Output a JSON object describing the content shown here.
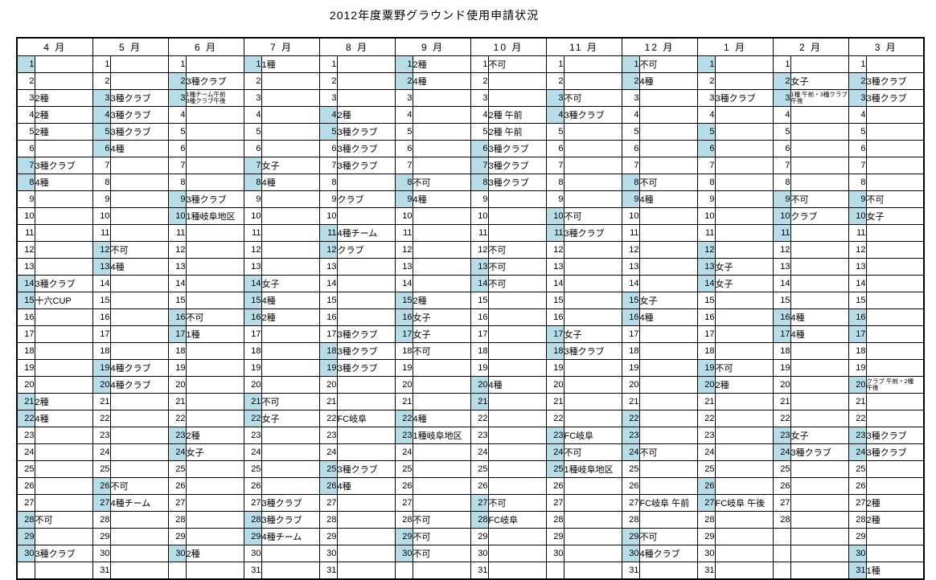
{
  "title": "2012年度粟野グラウンド使用申請状況",
  "colors": {
    "weekend_highlight": "#B7DEE8",
    "grid_line": "#000000",
    "background": "#FFFFFF"
  },
  "calendar": {
    "max_rows": 31,
    "months": [
      {
        "label": "4 月",
        "days": 30,
        "highlighted_days": [
          1,
          7,
          8,
          14,
          15,
          21,
          22,
          28,
          29,
          30
        ],
        "entries": {
          "3": "2種",
          "4": "2種",
          "5": "2種",
          "7": "3種クラブ",
          "8": "4種",
          "14": "3種クラブ",
          "15": "十六CUP",
          "21": "2種",
          "22": "4種",
          "28": "不可",
          "30": "3種クラブ"
        },
        "small_entries": {}
      },
      {
        "label": "5 月",
        "days": 31,
        "highlighted_days": [
          3,
          4,
          5,
          6,
          12,
          13,
          19,
          20,
          26,
          27
        ],
        "entries": {
          "3": "3種クラブ",
          "4": "3種クラブ",
          "5": "3種クラブ",
          "6": "4種",
          "12": "不可",
          "13": "4種",
          "19": "4種クラブ",
          "20": "4種クラブ",
          "26": "不可",
          "27": "4種チーム"
        },
        "small_entries": {}
      },
      {
        "label": "6 月",
        "days": 30,
        "highlighted_days": [
          2,
          3,
          9,
          10,
          16,
          17,
          23,
          24,
          30
        ],
        "entries": {
          "2": "3種クラブ",
          "9": "3種クラブ",
          "10": "1種岐阜地区",
          "16": "不可",
          "17": "1種",
          "23": "2種",
          "24": "女子",
          "30": "2種"
        },
        "small_entries": {
          "3": [
            "1種チーム午前",
            "3種クラブ午後"
          ]
        }
      },
      {
        "label": "7 月",
        "days": 31,
        "highlighted_days": [
          1,
          7,
          8,
          14,
          15,
          16,
          21,
          22,
          28,
          29
        ],
        "entries": {
          "1": "1種",
          "7": "女子",
          "8": "4種",
          "14": "女子",
          "15": "4種",
          "16": "2種",
          "21": "不可",
          "22": "女子",
          "27": "3種クラブ",
          "28": "3種クラブ",
          "29": "4種チーム"
        },
        "small_entries": {}
      },
      {
        "label": "8 月",
        "days": 31,
        "highlighted_days": [
          4,
          5,
          11,
          12,
          18,
          19,
          25,
          26
        ],
        "entries": {
          "4": "2種",
          "5": "3種クラブ",
          "6": "3種クラブ",
          "7": "3種クラブ",
          "9": "クラブ",
          "11": "4種チーム",
          "12": "クラブ",
          "17": "3種クラブ",
          "18": "3種クラブ",
          "19": "3種クラブ",
          "22": "FC岐阜",
          "25": "3種クラブ",
          "26": "4種"
        },
        "small_entries": {}
      },
      {
        "label": "9 月",
        "days": 30,
        "highlighted_days": [
          1,
          2,
          8,
          9,
          15,
          16,
          17,
          22,
          23,
          29,
          30
        ],
        "entries": {
          "1": "2種",
          "2": "4種",
          "8": "不可",
          "9": "4種",
          "15": "2種",
          "16": "女子",
          "17": "女子",
          "18": "不可",
          "22": "4種",
          "23": "1種岐阜地区",
          "28": "不可",
          "29": "不可",
          "30": "不可"
        },
        "small_entries": {}
      },
      {
        "label": "10 月",
        "days": 31,
        "highlighted_days": [
          6,
          7,
          8,
          13,
          14,
          20,
          21,
          27,
          28
        ],
        "entries": {
          "1": "不可",
          "4": "2種 午前",
          "5": "2種 午前",
          "6": "3種クラブ",
          "7": "3種クラブ",
          "8": "3種クラブ",
          "12": "不可",
          "13": "不可",
          "14": "不可",
          "20": "4種",
          "27": "不可",
          "28": "FC岐阜"
        },
        "small_entries": {}
      },
      {
        "label": "11 月",
        "days": 30,
        "highlighted_days": [
          3,
          4,
          10,
          11,
          17,
          18,
          23,
          24,
          25
        ],
        "entries": {
          "3": "不可",
          "4": "3種クラブ",
          "10": "不可",
          "11": "3種クラブ",
          "17": "女子",
          "18": "3種クラブ",
          "23": "FC岐阜",
          "24": "不可",
          "25": "1種岐阜地区"
        },
        "small_entries": {}
      },
      {
        "label": "12 月",
        "days": 31,
        "highlighted_days": [
          1,
          2,
          8,
          9,
          15,
          16,
          22,
          23,
          24,
          29,
          30
        ],
        "entries": {
          "1": "不可",
          "2": "4種",
          "8": "不可",
          "9": "4種",
          "15": "女子",
          "16": "4種",
          "24": "不可",
          "27": "FC岐阜 午前",
          "29": "不可",
          "30": "4種クラブ"
        },
        "small_entries": {}
      },
      {
        "label": "1 月",
        "days": 31,
        "highlighted_days": [
          1,
          5,
          6,
          12,
          13,
          14,
          19,
          20,
          26,
          27
        ],
        "entries": {
          "3": "3種クラブ",
          "13": "女子",
          "14": "女子",
          "19": "不可",
          "20": "2種",
          "27": "FC岐阜 午後"
        },
        "small_entries": {}
      },
      {
        "label": "2 月",
        "days": 28,
        "highlighted_days": [
          2,
          3,
          9,
          10,
          11,
          16,
          17,
          23,
          24
        ],
        "entries": {
          "2": "女子",
          "9": "不可",
          "10": "クラブ",
          "16": "4種",
          "17": "4種",
          "23": "女子",
          "24": "3種クラブ"
        },
        "small_entries": {
          "3": [
            "1種 午前・3種クラブ",
            "午後"
          ]
        }
      },
      {
        "label": "3 月",
        "days": 31,
        "highlighted_days": [
          2,
          3,
          9,
          10,
          16,
          17,
          20,
          23,
          24,
          30,
          31
        ],
        "entries": {
          "2": "3種クラブ",
          "3": "3種クラブ",
          "9": "不可",
          "10": "女子",
          "23": "3種クラブ",
          "24": "3種クラブ",
          "27": "2種",
          "28": "2種",
          "31": "1種"
        },
        "small_entries": {
          "20": [
            "クラブ 午前・2種",
            "午後"
          ]
        }
      }
    ]
  }
}
